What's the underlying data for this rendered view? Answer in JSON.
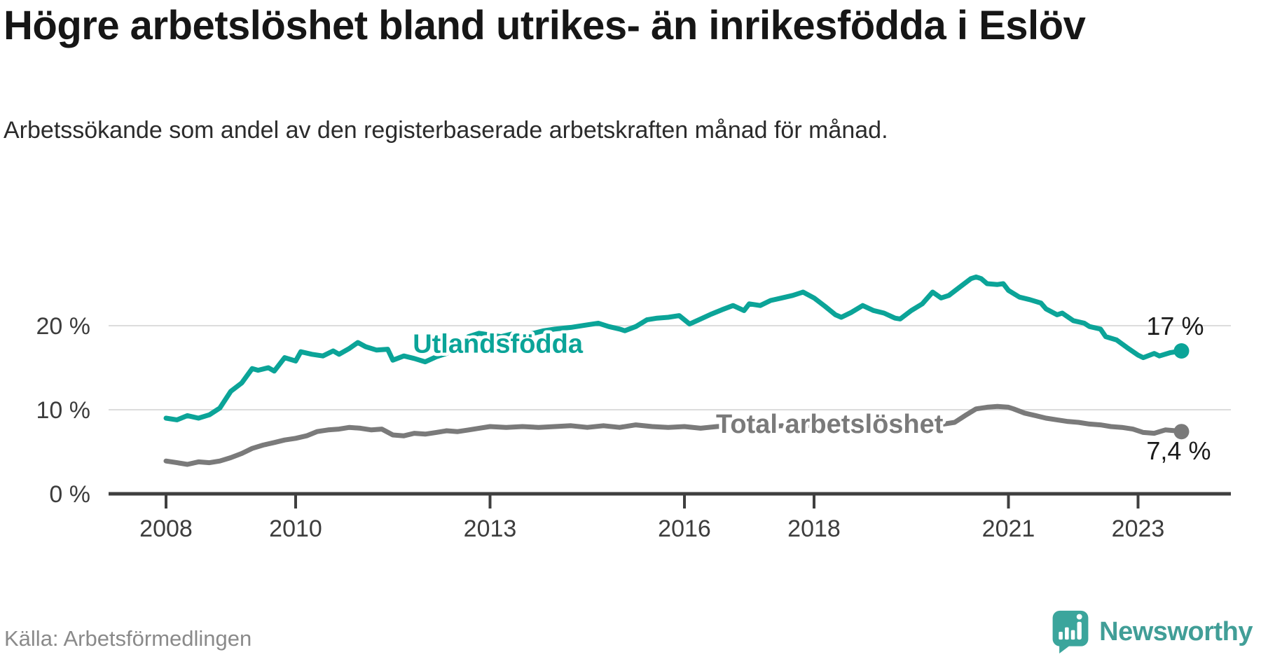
{
  "chart_data": {
    "type": "line",
    "title": "Högre arbetslöshet bland utrikes- än inrikesfödda i Eslöv",
    "subtitle": "Arbetssökande som andel av den registerbaserade arbetskraften månad för månad.",
    "xlabel": "",
    "ylabel": "",
    "ylim": [
      0,
      27
    ],
    "xlim": [
      2006.9,
      2024.5
    ],
    "grid": "horizontal",
    "legend_position": "inline-labels-on-lines",
    "grid_color": "#dcdcdc",
    "axis_color": "#3f3f3f",
    "yticks": [
      {
        "value": 0,
        "label": "0 %"
      },
      {
        "value": 10,
        "label": "10 %"
      },
      {
        "value": 20,
        "label": "20 %"
      }
    ],
    "xticks": [
      {
        "value": 2008,
        "label": "2008"
      },
      {
        "value": 2010,
        "label": "2010"
      },
      {
        "value": 2013,
        "label": "2013"
      },
      {
        "value": 2016,
        "label": "2016"
      },
      {
        "value": 2018,
        "label": "2018"
      },
      {
        "value": 2021,
        "label": "2021"
      },
      {
        "value": 2023,
        "label": "2023"
      }
    ],
    "series": [
      {
        "name": "Utlandsfödda",
        "slug": "utlandsfodda",
        "color": "#0ba498",
        "end_label": "17 %",
        "label_x": 2013.12,
        "label_y": 16.8,
        "points": [
          [
            2008.0,
            9.0
          ],
          [
            2008.17,
            8.8
          ],
          [
            2008.33,
            9.3
          ],
          [
            2008.5,
            9.0
          ],
          [
            2008.67,
            9.4
          ],
          [
            2008.83,
            10.2
          ],
          [
            2009.0,
            12.2
          ],
          [
            2009.17,
            13.2
          ],
          [
            2009.33,
            14.9
          ],
          [
            2009.42,
            14.7
          ],
          [
            2009.58,
            15.0
          ],
          [
            2009.67,
            14.6
          ],
          [
            2009.83,
            16.2
          ],
          [
            2010.0,
            15.8
          ],
          [
            2010.08,
            16.9
          ],
          [
            2010.25,
            16.6
          ],
          [
            2010.42,
            16.4
          ],
          [
            2010.58,
            17.0
          ],
          [
            2010.67,
            16.6
          ],
          [
            2010.83,
            17.3
          ],
          [
            2010.96,
            18.0
          ],
          [
            2011.08,
            17.5
          ],
          [
            2011.25,
            17.1
          ],
          [
            2011.42,
            17.2
          ],
          [
            2011.5,
            15.9
          ],
          [
            2011.67,
            16.4
          ],
          [
            2011.83,
            16.1
          ],
          [
            2012.0,
            15.7
          ],
          [
            2012.17,
            16.3
          ],
          [
            2012.33,
            16.7
          ],
          [
            2012.5,
            17.6
          ],
          [
            2012.67,
            18.7
          ],
          [
            2012.83,
            19.1
          ],
          [
            2013.0,
            18.9
          ],
          [
            2013.17,
            18.7
          ],
          [
            2013.33,
            19.0
          ],
          [
            2013.5,
            18.9
          ],
          [
            2013.67,
            19.1
          ],
          [
            2013.83,
            19.4
          ],
          [
            2014.0,
            19.6
          ],
          [
            2014.25,
            19.8
          ],
          [
            2014.5,
            20.1
          ],
          [
            2014.67,
            20.3
          ],
          [
            2014.83,
            19.9
          ],
          [
            2015.0,
            19.6
          ],
          [
            2015.08,
            19.4
          ],
          [
            2015.25,
            19.9
          ],
          [
            2015.42,
            20.7
          ],
          [
            2015.58,
            20.9
          ],
          [
            2015.75,
            21.0
          ],
          [
            2015.92,
            21.2
          ],
          [
            2016.08,
            20.2
          ],
          [
            2016.25,
            20.8
          ],
          [
            2016.42,
            21.4
          ],
          [
            2016.58,
            21.9
          ],
          [
            2016.75,
            22.4
          ],
          [
            2016.92,
            21.8
          ],
          [
            2017.0,
            22.6
          ],
          [
            2017.17,
            22.4
          ],
          [
            2017.33,
            23.0
          ],
          [
            2017.5,
            23.3
          ],
          [
            2017.67,
            23.6
          ],
          [
            2017.83,
            24.0
          ],
          [
            2018.0,
            23.3
          ],
          [
            2018.17,
            22.3
          ],
          [
            2018.33,
            21.3
          ],
          [
            2018.42,
            21.0
          ],
          [
            2018.58,
            21.6
          ],
          [
            2018.75,
            22.4
          ],
          [
            2018.92,
            21.8
          ],
          [
            2019.08,
            21.5
          ],
          [
            2019.25,
            20.9
          ],
          [
            2019.33,
            20.8
          ],
          [
            2019.5,
            21.8
          ],
          [
            2019.67,
            22.6
          ],
          [
            2019.83,
            24.0
          ],
          [
            2019.96,
            23.3
          ],
          [
            2020.08,
            23.6
          ],
          [
            2020.25,
            24.6
          ],
          [
            2020.42,
            25.6
          ],
          [
            2020.5,
            25.8
          ],
          [
            2020.58,
            25.6
          ],
          [
            2020.67,
            25.0
          ],
          [
            2020.83,
            24.9
          ],
          [
            2020.92,
            25.0
          ],
          [
            2021.0,
            24.2
          ],
          [
            2021.17,
            23.4
          ],
          [
            2021.33,
            23.1
          ],
          [
            2021.5,
            22.7
          ],
          [
            2021.58,
            22.0
          ],
          [
            2021.75,
            21.3
          ],
          [
            2021.83,
            21.5
          ],
          [
            2022.0,
            20.6
          ],
          [
            2022.17,
            20.3
          ],
          [
            2022.25,
            19.9
          ],
          [
            2022.42,
            19.6
          ],
          [
            2022.5,
            18.7
          ],
          [
            2022.67,
            18.3
          ],
          [
            2022.83,
            17.4
          ],
          [
            2023.0,
            16.5
          ],
          [
            2023.08,
            16.2
          ],
          [
            2023.25,
            16.7
          ],
          [
            2023.33,
            16.4
          ],
          [
            2023.5,
            16.8
          ],
          [
            2023.67,
            17.0
          ]
        ]
      },
      {
        "name": "Total arbetslöshet",
        "slug": "total-arbetsloshet",
        "color": "#7a7a7a",
        "end_label": "7,4 %",
        "label_x": 2018.24,
        "label_y": 7.25,
        "points": [
          [
            2008.0,
            3.9
          ],
          [
            2008.17,
            3.7
          ],
          [
            2008.33,
            3.5
          ],
          [
            2008.5,
            3.8
          ],
          [
            2008.67,
            3.7
          ],
          [
            2008.83,
            3.9
          ],
          [
            2009.0,
            4.3
          ],
          [
            2009.17,
            4.8
          ],
          [
            2009.33,
            5.4
          ],
          [
            2009.5,
            5.8
          ],
          [
            2009.67,
            6.1
          ],
          [
            2009.83,
            6.4
          ],
          [
            2010.0,
            6.6
          ],
          [
            2010.17,
            6.9
          ],
          [
            2010.33,
            7.4
          ],
          [
            2010.5,
            7.6
          ],
          [
            2010.67,
            7.7
          ],
          [
            2010.83,
            7.9
          ],
          [
            2011.0,
            7.8
          ],
          [
            2011.17,
            7.6
          ],
          [
            2011.33,
            7.7
          ],
          [
            2011.5,
            7.0
          ],
          [
            2011.67,
            6.9
          ],
          [
            2011.83,
            7.2
          ],
          [
            2012.0,
            7.1
          ],
          [
            2012.17,
            7.3
          ],
          [
            2012.33,
            7.5
          ],
          [
            2012.5,
            7.4
          ],
          [
            2012.67,
            7.6
          ],
          [
            2012.83,
            7.8
          ],
          [
            2013.0,
            8.0
          ],
          [
            2013.25,
            7.9
          ],
          [
            2013.5,
            8.0
          ],
          [
            2013.75,
            7.9
          ],
          [
            2014.0,
            8.0
          ],
          [
            2014.25,
            8.1
          ],
          [
            2014.5,
            7.9
          ],
          [
            2014.75,
            8.1
          ],
          [
            2015.0,
            7.9
          ],
          [
            2015.25,
            8.2
          ],
          [
            2015.5,
            8.0
          ],
          [
            2015.75,
            7.9
          ],
          [
            2016.0,
            8.0
          ],
          [
            2016.25,
            7.8
          ],
          [
            2016.5,
            8.0
          ],
          [
            2016.75,
            8.1
          ],
          [
            2017.0,
            8.0
          ],
          [
            2017.25,
            7.9
          ],
          [
            2017.5,
            8.1
          ],
          [
            2017.75,
            8.0
          ],
          [
            2018.0,
            8.2
          ],
          [
            2018.25,
            8.0
          ],
          [
            2018.5,
            8.2
          ],
          [
            2018.75,
            8.3
          ],
          [
            2019.0,
            8.2
          ],
          [
            2019.25,
            8.1
          ],
          [
            2019.5,
            8.3
          ],
          [
            2019.75,
            8.4
          ],
          [
            2020.0,
            8.3
          ],
          [
            2020.17,
            8.5
          ],
          [
            2020.33,
            9.3
          ],
          [
            2020.5,
            10.1
          ],
          [
            2020.67,
            10.3
          ],
          [
            2020.83,
            10.4
          ],
          [
            2021.0,
            10.3
          ],
          [
            2021.08,
            10.1
          ],
          [
            2021.25,
            9.6
          ],
          [
            2021.42,
            9.3
          ],
          [
            2021.58,
            9.0
          ],
          [
            2021.75,
            8.8
          ],
          [
            2021.92,
            8.6
          ],
          [
            2022.08,
            8.5
          ],
          [
            2022.25,
            8.3
          ],
          [
            2022.42,
            8.2
          ],
          [
            2022.58,
            8.0
          ],
          [
            2022.75,
            7.9
          ],
          [
            2022.92,
            7.7
          ],
          [
            2023.08,
            7.3
          ],
          [
            2023.25,
            7.2
          ],
          [
            2023.42,
            7.6
          ],
          [
            2023.58,
            7.5
          ],
          [
            2023.67,
            7.4
          ]
        ]
      }
    ]
  },
  "source": {
    "label": "Källa: Arbetsförmedlingen"
  },
  "branding": {
    "name": "Newsworthy",
    "icon_color": "#3ba59c",
    "text_color": "#419e97"
  }
}
